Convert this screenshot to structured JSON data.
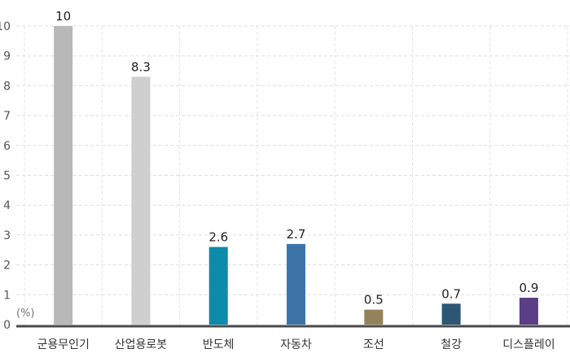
{
  "chart_data": {
    "type": "bar",
    "title": "",
    "xlabel": "",
    "ylabel": "",
    "unit_label": "(%)",
    "ylim": [
      0,
      10
    ],
    "yticks": [
      0,
      1,
      2,
      3,
      4,
      5,
      6,
      7,
      8,
      9,
      10
    ],
    "grid": true,
    "categories": [
      "군용무인기",
      "산업용로봇",
      "반도체",
      "자동차",
      "조선",
      "철강",
      "디스플레이"
    ],
    "values": [
      10,
      8.3,
      2.6,
      2.7,
      0.5,
      0.7,
      0.9
    ],
    "value_labels": [
      "10",
      "8.3",
      "2.6",
      "2.7",
      "0.5",
      "0.7",
      "0.9"
    ],
    "colors": [
      "#b8b8b8",
      "#cfcfcf",
      "#0e8aaa",
      "#3d74a8",
      "#94825a",
      "#2c5673",
      "#5a3f87"
    ]
  }
}
